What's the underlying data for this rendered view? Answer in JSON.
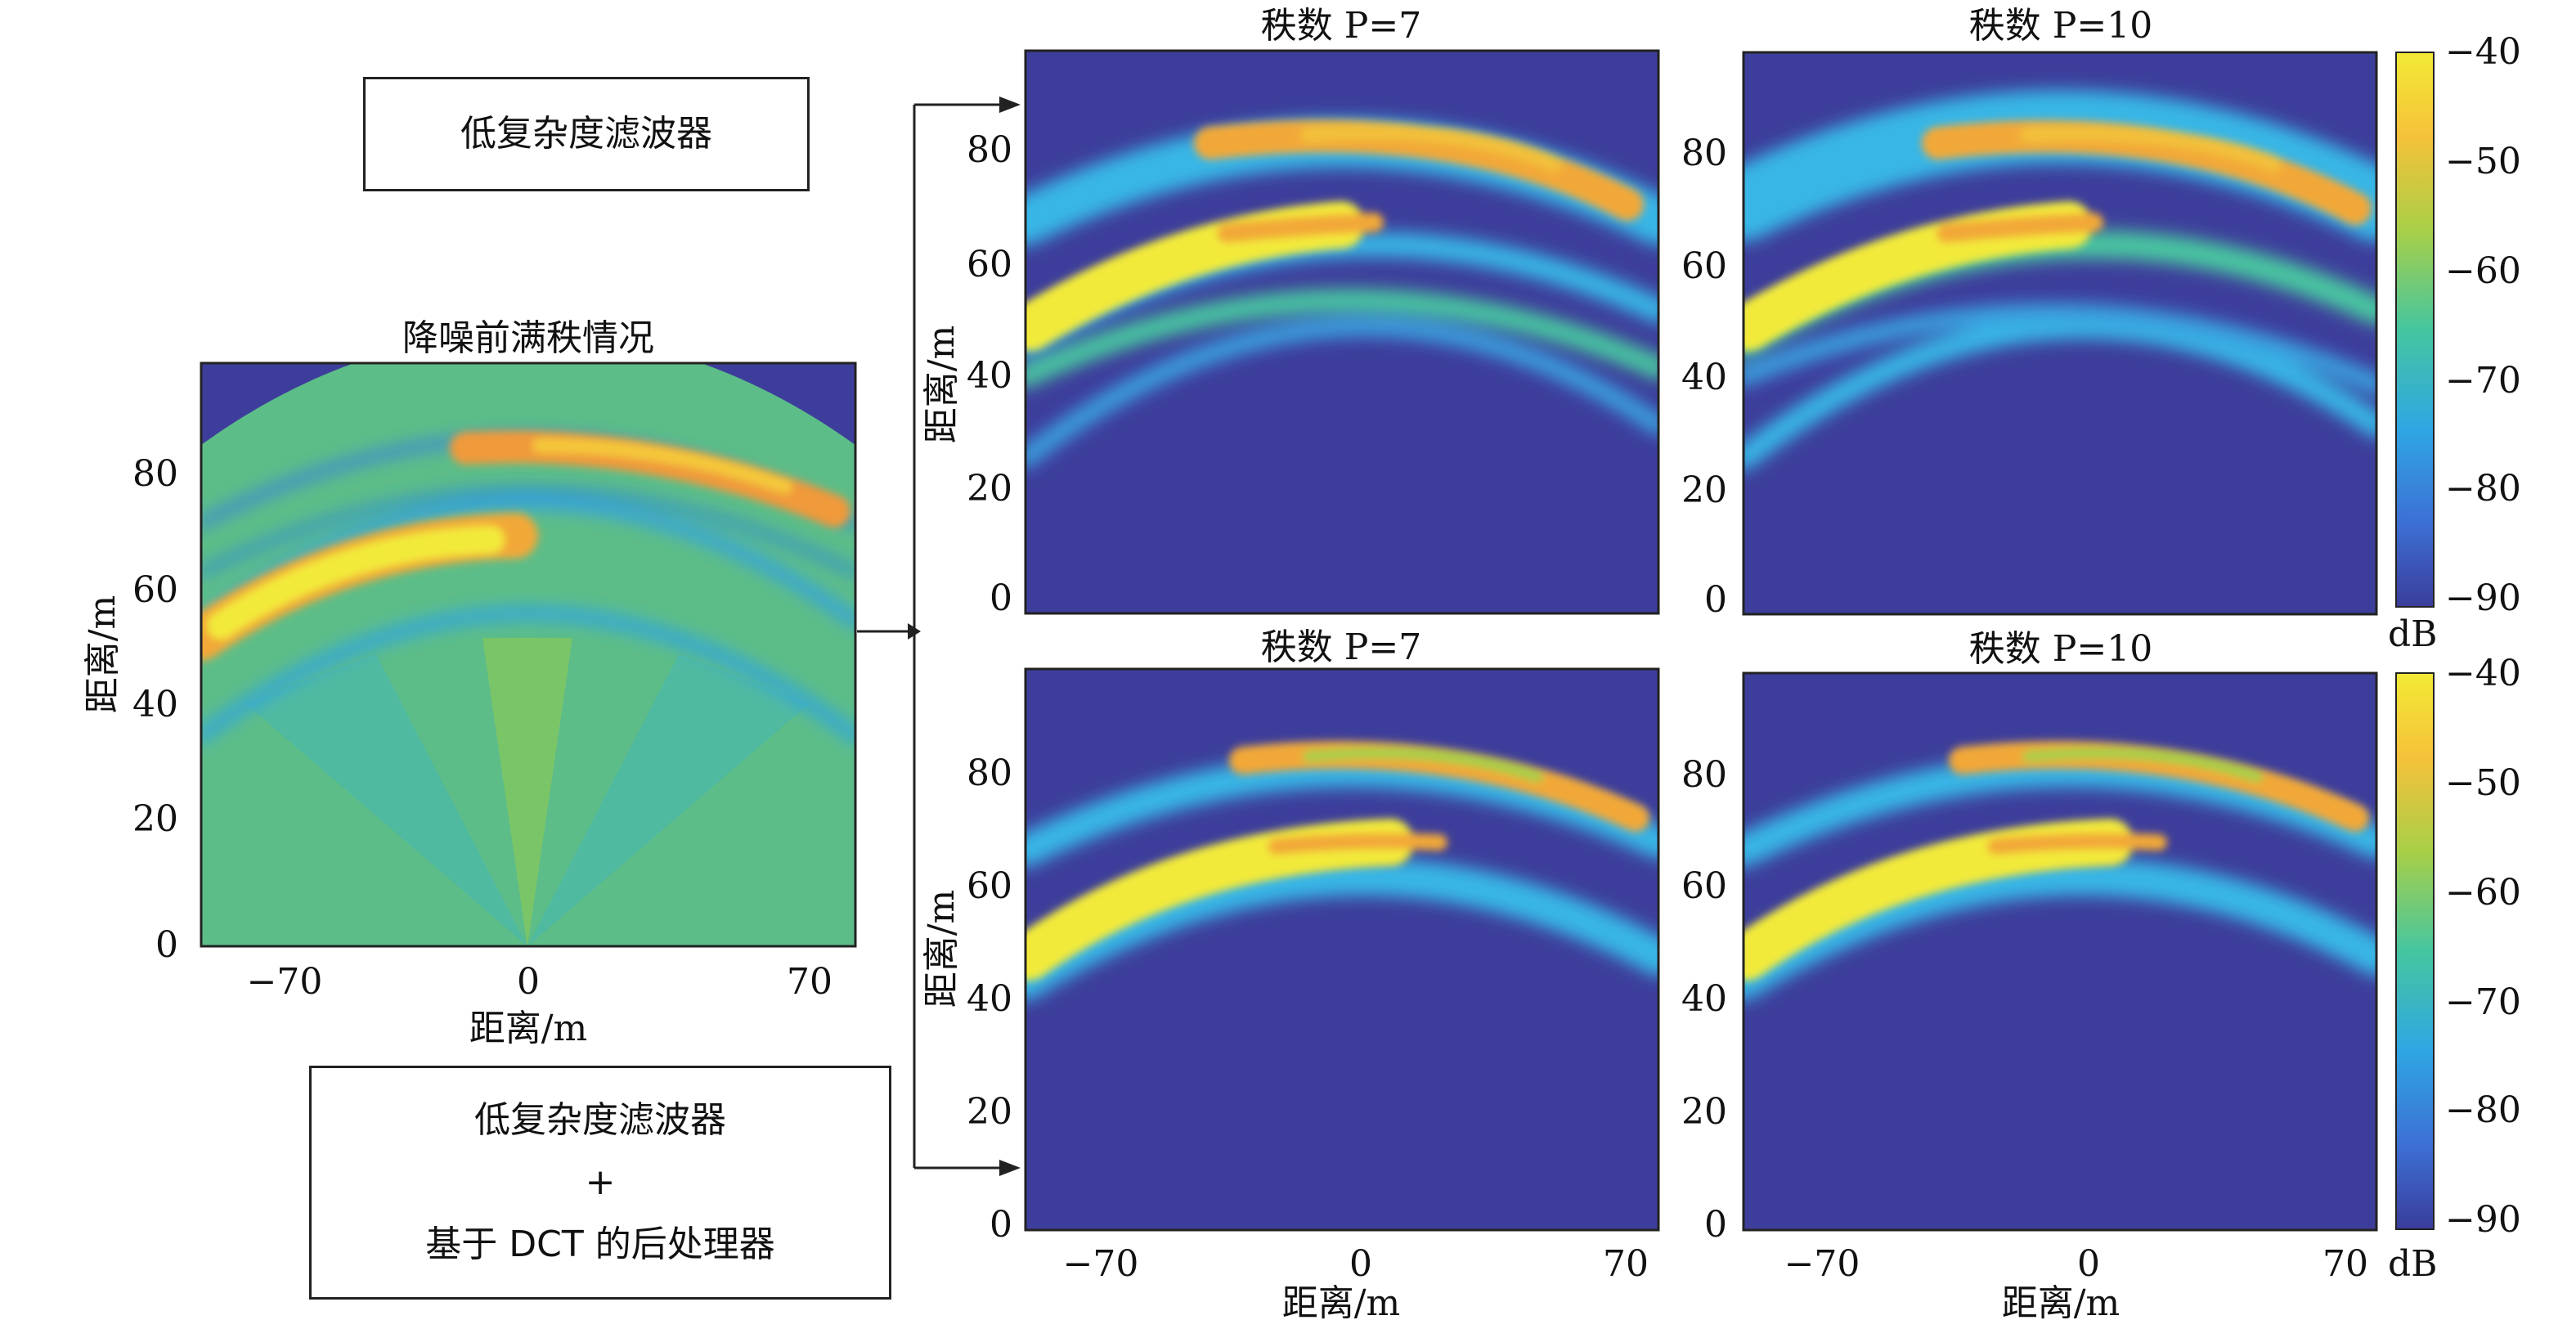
{
  "filter_box": {
    "label": "低复杂度滤波器"
  },
  "dct_box": {
    "line1": "低复杂度滤波器",
    "line2": "+",
    "line3": "基于 DCT 的后处理器"
  },
  "panels": [
    {
      "id": "full-rank",
      "title": "降噪前满秩情况",
      "ylabel": "距离/m",
      "xlabel": "距离/m",
      "xticks": [
        "−70",
        "0",
        "70"
      ],
      "yticks": [
        "0",
        "20",
        "40",
        "60",
        "80"
      ]
    },
    {
      "id": "p7-top",
      "title": "秩数 P=7",
      "ylabel": "距离/m",
      "xlabel": "",
      "xticks": [],
      "yticks": [
        "0",
        "20",
        "40",
        "60",
        "80"
      ]
    },
    {
      "id": "p10-top",
      "title": "秩数 P=10",
      "ylabel": "",
      "xlabel": "",
      "xticks": [],
      "yticks": [
        "0",
        "20",
        "40",
        "60",
        "80"
      ]
    },
    {
      "id": "p7-bottom",
      "title": "秩数 P=7",
      "ylabel": "距离/m",
      "xlabel": "距离/m",
      "xticks": [
        "−70",
        "0",
        "70"
      ],
      "yticks": [
        "0",
        "20",
        "40",
        "60",
        "80"
      ]
    },
    {
      "id": "p10-bottom",
      "title": "秩数 P=10",
      "ylabel": "",
      "xlabel": "距离/m",
      "xticks": [
        "−70",
        "0",
        "70"
      ],
      "yticks": [
        "0",
        "20",
        "40",
        "60",
        "80"
      ]
    }
  ],
  "colorbar": {
    "ticks": [
      "−40",
      "−50",
      "−60",
      "−70",
      "−80",
      "−90"
    ],
    "unit": "dB"
  },
  "colors": {
    "background": "#3d3e9b",
    "arcs": [
      "#37b6e6",
      "#4ac7a0",
      "#a5cf4a",
      "#f4c23c",
      "#f2e63a"
    ]
  }
}
